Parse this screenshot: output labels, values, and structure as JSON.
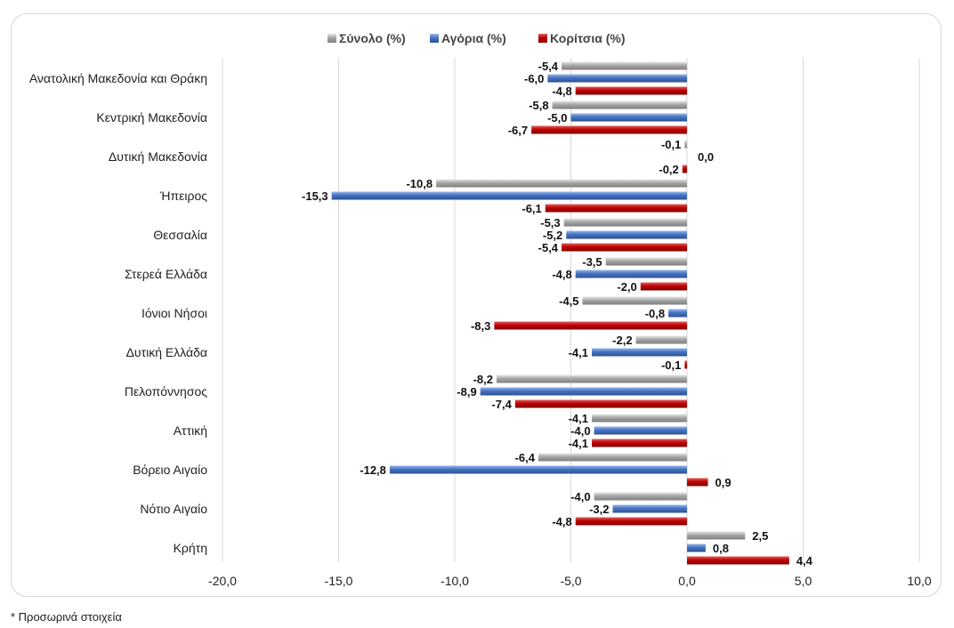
{
  "footnote": "* Προσωρινά στοιχεία",
  "colors": {
    "total": "#a6a6a6",
    "boys": "#4472c4",
    "girls": "#c00000",
    "grid": "#d9d9d9"
  },
  "chart_data": {
    "type": "bar",
    "orientation": "horizontal",
    "categories": [
      "Ανατολική Μακεδονία και Θράκη",
      "Κεντρική Μακεδονία",
      "Δυτική Μακεδονία",
      "Ήπειρος",
      "Θεσσαλία",
      "Στερεά Ελλάδα",
      "Ιόνιοι Νήσοι",
      "Δυτική Ελλάδα",
      "Πελοπόννησος",
      "Αττική",
      "Βόρειο Αιγαίο",
      "Νότιο Αιγαίο",
      "Κρήτη"
    ],
    "series": [
      {
        "name": "Σύνολο (%)",
        "color": "#a6a6a6",
        "values": [
          -5.4,
          -5.8,
          -0.1,
          -10.8,
          -5.3,
          -3.5,
          -4.5,
          -2.2,
          -8.2,
          -4.1,
          -6.4,
          -4.0,
          2.5
        ],
        "labels": [
          "-5,4",
          "-5,8",
          "-0,1",
          "-10,8",
          "-5,3",
          "-3,5",
          "-4,5",
          "-2,2",
          "-8,2",
          "-4,1",
          "-6,4",
          "-4,0",
          "2,5"
        ]
      },
      {
        "name": "Αγόρια (%)",
        "color": "#4472c4",
        "values": [
          -6.0,
          -5.0,
          0.0,
          -15.3,
          -5.2,
          -4.8,
          -0.8,
          -4.1,
          -8.9,
          -4.0,
          -12.8,
          -3.2,
          0.8
        ],
        "labels": [
          "-6,0",
          "-5,0",
          "0,0",
          "-15,3",
          "-5,2",
          "-4,8",
          "-0,8",
          "-4,1",
          "-8,9",
          "-4,0",
          "-12,8",
          "-3,2",
          "0,8"
        ]
      },
      {
        "name": "Κορίτσια (%)",
        "color": "#c00000",
        "values": [
          -4.8,
          -6.7,
          -0.2,
          -6.1,
          -5.4,
          -2.0,
          -8.3,
          -0.1,
          -7.4,
          -4.1,
          0.9,
          -4.8,
          4.4
        ],
        "labels": [
          "-4,8",
          "-6,7",
          "-0,2",
          "-6,1",
          "-5,4",
          "-2,0",
          "-8,3",
          "-0,1",
          "-7,4",
          "-4,1",
          "0,9",
          "-4,8",
          "4,4"
        ]
      }
    ],
    "xlim": [
      -20,
      10
    ],
    "xticks": [
      -20,
      -15,
      -10,
      -5,
      0,
      5,
      10
    ],
    "xtick_labels": [
      "-20,0",
      "-15,0",
      "-10,0",
      "-5,0",
      "0,0",
      "5,0",
      "10,0"
    ],
    "grid": "vertical",
    "legend_position": "top"
  }
}
